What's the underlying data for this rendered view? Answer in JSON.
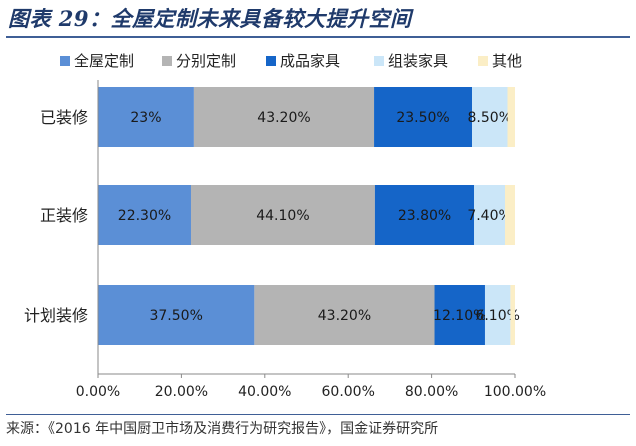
{
  "figure_title": "图表 29：全屋定制未来具备较大提升空间",
  "source_text": "来源：《2016 年中国厨卫市场及消费行为研究报告》，国金证券研究所",
  "chart_data": {
    "type": "bar",
    "orientation": "horizontal",
    "stacked": "percent",
    "categories": [
      "已装修",
      "正装修",
      "计划装修"
    ],
    "series": [
      {
        "name": "全屋定制",
        "color": "#5b8fd6",
        "values": [
          23.0,
          22.3,
          37.5
        ],
        "labels": [
          "23%",
          "22.30%",
          "37.50%"
        ]
      },
      {
        "name": "分别定制",
        "color": "#b4b4b4",
        "values": [
          43.2,
          44.1,
          43.2
        ],
        "labels": [
          "43.20%",
          "44.10%",
          "43.20%"
        ]
      },
      {
        "name": "成品家具",
        "color": "#1565c8",
        "values": [
          23.5,
          23.8,
          12.1
        ],
        "labels": [
          "23.50%",
          "23.80%",
          "12.10%"
        ]
      },
      {
        "name": "组装家具",
        "color": "#cbe6f8",
        "values": [
          8.5,
          7.4,
          6.1
        ],
        "labels": [
          "8.50%",
          "7.40%",
          "6.10%"
        ]
      },
      {
        "name": "其他",
        "color": "#fbeec6",
        "values": [
          1.8,
          2.4,
          1.1
        ],
        "labels": [
          "",
          "",
          ""
        ]
      }
    ],
    "xlim": [
      0,
      100
    ],
    "xticks": [
      "0.00%",
      "20.00%",
      "40.00%",
      "60.00%",
      "80.00%",
      "100.00%"
    ],
    "legend_position": "top",
    "grid": false
  }
}
